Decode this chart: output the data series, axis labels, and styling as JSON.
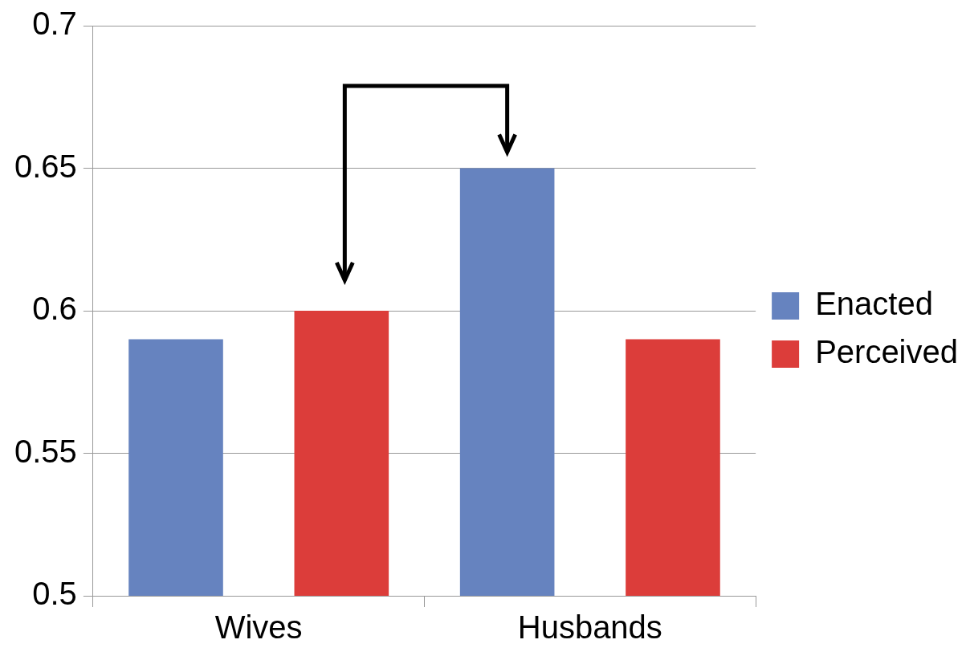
{
  "chart_data": {
    "type": "bar",
    "categories": [
      "Wives",
      "Husbands"
    ],
    "series": [
      {
        "name": "Enacted",
        "color": "#6683bf",
        "values": [
          0.59,
          0.65
        ]
      },
      {
        "name": "Perceived",
        "color": "#dc3d3a",
        "values": [
          0.6,
          0.59
        ]
      }
    ],
    "ylim": [
      0.5,
      0.7
    ],
    "yticks": [
      0.5,
      0.55,
      0.6,
      0.65,
      0.7
    ],
    "grid": "y",
    "legend": "right"
  }
}
